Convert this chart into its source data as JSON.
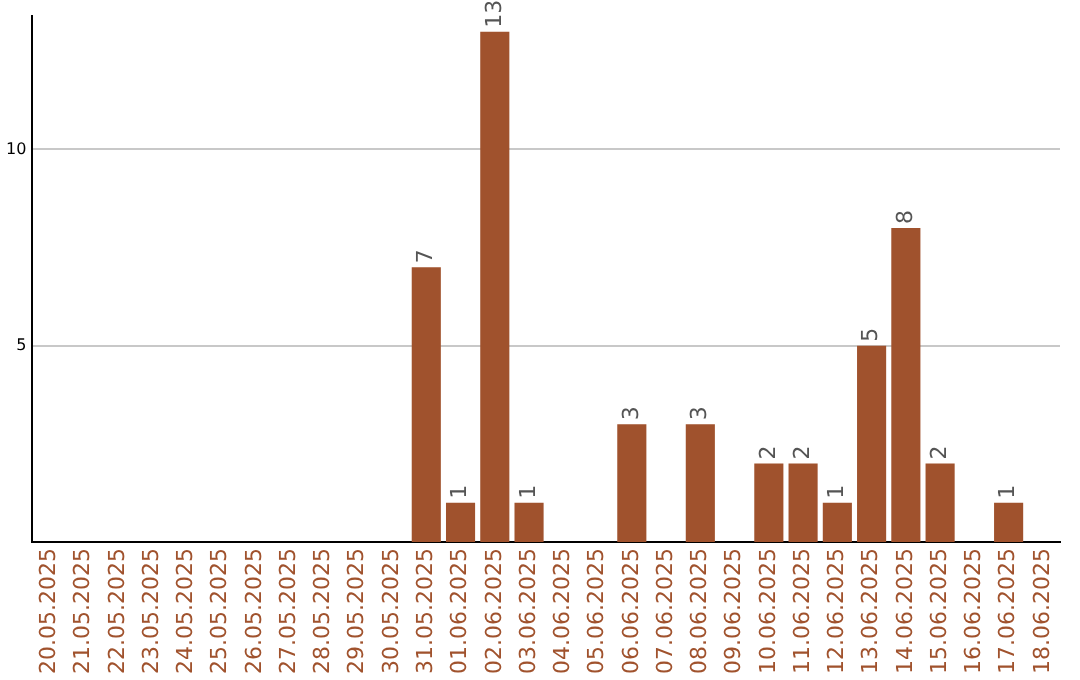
{
  "chart_data": {
    "type": "bar",
    "categories": [
      "20.05.2025",
      "21.05.2025",
      "22.05.2025",
      "23.05.2025",
      "24.05.2025",
      "25.05.2025",
      "26.05.2025",
      "27.05.2025",
      "28.05.2025",
      "29.05.2025",
      "30.05.2025",
      "31.05.2025",
      "01.06.2025",
      "02.06.2025",
      "03.06.2025",
      "04.06.2025",
      "05.06.2025",
      "06.06.2025",
      "07.06.2025",
      "08.06.2025",
      "09.06.2025",
      "10.06.2025",
      "11.06.2025",
      "12.06.2025",
      "13.06.2025",
      "14.06.2025",
      "15.06.2025",
      "16.06.2025",
      "17.06.2025",
      "18.06.2025"
    ],
    "values": [
      0,
      0,
      0,
      0,
      0,
      0,
      0,
      0,
      0,
      0,
      0,
      7,
      1,
      13,
      1,
      0,
      0,
      3,
      0,
      3,
      0,
      2,
      2,
      1,
      5,
      8,
      2,
      0,
      1,
      0
    ],
    "value_labels": [
      null,
      null,
      null,
      null,
      null,
      null,
      null,
      null,
      null,
      null,
      null,
      "7",
      "1",
      "13",
      "1",
      null,
      null,
      "3",
      null,
      "3",
      null,
      "2",
      "2",
      "1",
      "5",
      "8",
      "2",
      null,
      "1",
      null
    ],
    "color": "#a0522d",
    "ylim": [
      0,
      13.4
    ],
    "yticks": [
      5,
      10
    ],
    "grid": "y",
    "legend": false
  }
}
